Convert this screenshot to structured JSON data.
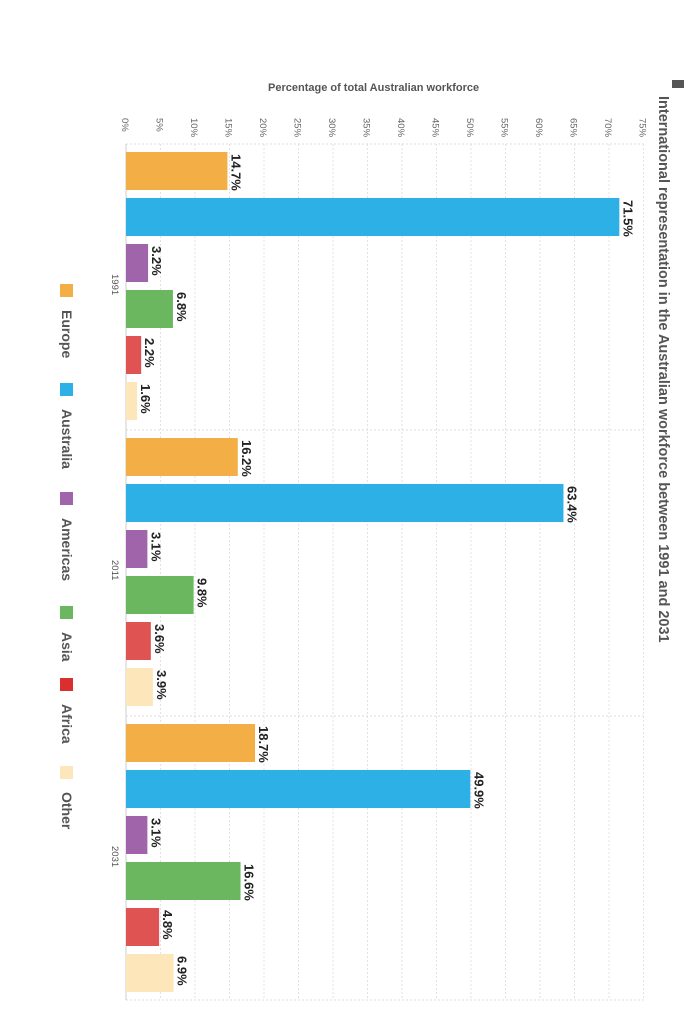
{
  "title": "International representation in the Australian workforce between 1991 and 2031",
  "colors": {
    "Europe": "#f3ae45",
    "Australia": "#2db0e6",
    "Americas": "#a064ab",
    "Asia": "#6ab75f",
    "Africa": "#e05353",
    "Other": "#fde6b9",
    "legend_Africa": "#d9302f"
  },
  "legend": [
    "Europe",
    "Australia",
    "Americas",
    "Asia",
    "Africa",
    "Other"
  ],
  "chart_data": {
    "type": "bar",
    "orientation": "horizontal",
    "title": "International representation in the Australian workforce between 1991 and 2031",
    "xlabel": "Percentage of total Australian workforce",
    "ylabel": "",
    "xlim": [
      0,
      75
    ],
    "ticks": [
      "0%",
      "5%",
      "10%",
      "15%",
      "20%",
      "25%",
      "30%",
      "35%",
      "40%",
      "45%",
      "50%",
      "55%",
      "60%",
      "65%",
      "70%",
      "75%"
    ],
    "categories": [
      "1991",
      "2011",
      "2031"
    ],
    "series": [
      {
        "name": "Europe",
        "values": [
          14.7,
          16.2,
          18.7
        ],
        "labels": [
          "14.7%",
          "16.2%",
          "18.7%"
        ]
      },
      {
        "name": "Australia",
        "values": [
          71.5,
          63.4,
          49.9
        ],
        "labels": [
          "71.5%",
          "63.4%",
          "49.9%"
        ]
      },
      {
        "name": "Americas",
        "values": [
          3.2,
          3.1,
          3.1
        ],
        "labels": [
          "3.2%",
          "3.1%",
          "3.1%"
        ]
      },
      {
        "name": "Asia",
        "values": [
          6.8,
          9.8,
          16.6
        ],
        "labels": [
          "6.8%",
          "9.8%",
          "16.6%"
        ]
      },
      {
        "name": "Africa",
        "values": [
          2.2,
          3.6,
          4.8
        ],
        "labels": [
          "2.2%",
          "3.6%",
          "4.8%"
        ]
      },
      {
        "name": "Other",
        "values": [
          1.6,
          3.9,
          6.9
        ],
        "labels": [
          "1.6%",
          "3.9%",
          "6.9%"
        ]
      }
    ],
    "legend_position": "left",
    "grid": true
  }
}
